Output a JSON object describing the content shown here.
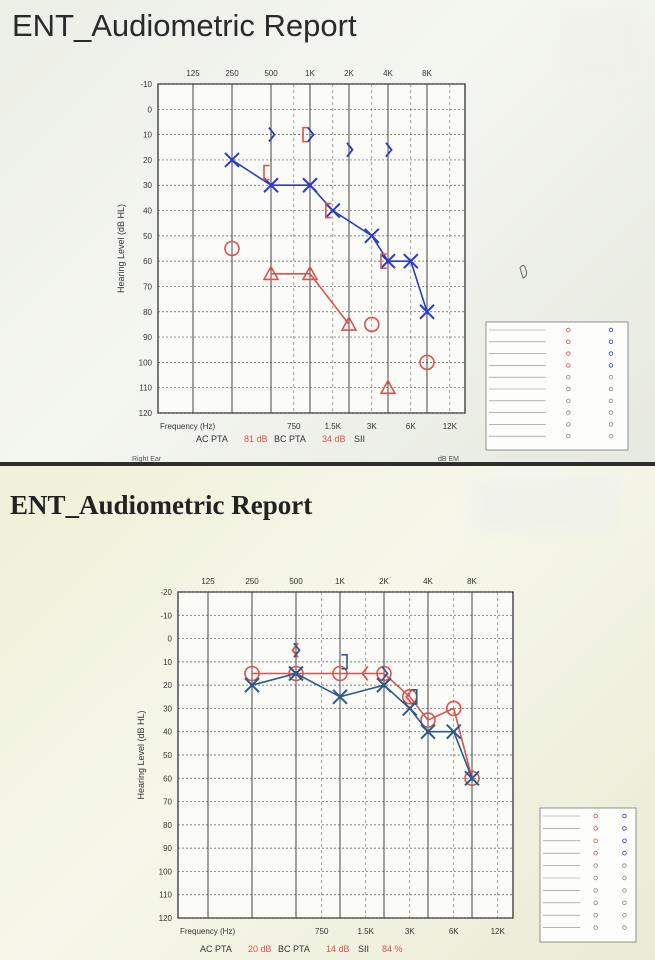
{
  "reports": [
    {
      "title": "ENT_Audiometric Report",
      "chart_data": {
        "type": "scatter",
        "xlabel": "Frequency (Hz)",
        "ylabel": "Hearing Level (dB HL)",
        "x_top_ticks": [
          "125",
          "250",
          "500",
          "1K",
          "2K",
          "4K",
          "8K"
        ],
        "x_bottom_ticks": [
          "750",
          "1.5K",
          "3K",
          "6K",
          "12K"
        ],
        "y_ticks": [
          -10,
          0,
          10,
          20,
          30,
          40,
          50,
          60,
          70,
          80,
          90,
          100,
          110,
          120
        ],
        "ylim": [
          -10,
          120
        ],
        "grid": true,
        "series": [
          {
            "symbol": "circle",
            "color": "#d9534f",
            "x": [
              "250"
            ],
            "values": [
              55
            ]
          },
          {
            "symbol": "triangle",
            "color": "#d9534f",
            "x": [
              "500",
              "1K",
              "2K"
            ],
            "values": [
              65,
              65,
              85
            ]
          },
          {
            "symbol": "circle",
            "color": "#d9534f",
            "x": [
              "3K"
            ],
            "values": [
              85
            ]
          },
          {
            "symbol": "triangle",
            "color": "#d9534f",
            "x": [
              "4K"
            ],
            "values": [
              110
            ]
          },
          {
            "symbol": "circle",
            "color": "#d9534f",
            "x": [
              "8K"
            ],
            "values": [
              100
            ]
          },
          {
            "symbol": "cross",
            "color": "#2a3cc8",
            "x": [
              "250",
              "500",
              "1K",
              "1.5K",
              "3K",
              "4K",
              "6K",
              "8K"
            ],
            "values": [
              20,
              30,
              30,
              40,
              50,
              60,
              60,
              80
            ]
          },
          {
            "symbol": "bracket-left",
            "color": "#d9534f",
            "x": [
              "500",
              "1K",
              "1.5K",
              "4K"
            ],
            "values": [
              25,
              10,
              40,
              60
            ]
          },
          {
            "symbol": "angle-right",
            "color": "#2a3cc8",
            "x": [
              "500",
              "1K",
              "2K",
              "4K"
            ],
            "values": [
              10,
              10,
              16,
              16
            ]
          }
        ],
        "footer": {
          "ac_label": "AC PTA",
          "ac_value": "81 dB",
          "bc_label": "BC PTA",
          "bc_value": "34 dB",
          "sii_label": "SII",
          "sii_value": ""
        },
        "ear_label": "Right Ear",
        "unit_label": "dB EM"
      }
    },
    {
      "title": "ENT_Audiometric Report",
      "chart_data": {
        "type": "scatter",
        "xlabel": "Frequency (Hz)",
        "ylabel": "Hearing Level (dB HL)",
        "x_top_ticks": [
          "125",
          "250",
          "500",
          "1K",
          "2K",
          "4K",
          "8K"
        ],
        "x_bottom_ticks": [
          "750",
          "1.5K",
          "3K",
          "6K",
          "12K"
        ],
        "y_ticks": [
          -20,
          -10,
          0,
          10,
          20,
          30,
          40,
          50,
          60,
          70,
          80,
          90,
          100,
          110,
          120
        ],
        "ylim": [
          -20,
          120
        ],
        "grid": true,
        "series": [
          {
            "symbol": "circle",
            "color": "#d9534f",
            "x": [
              "250",
              "500",
              "1K",
              "2K",
              "3K",
              "4K",
              "6K",
              "8K"
            ],
            "values": [
              15,
              15,
              15,
              15,
              25,
              35,
              30,
              60
            ]
          },
          {
            "symbol": "cross",
            "color": "#2e5a8a",
            "x": [
              "250",
              "500",
              "1K",
              "2K",
              "3K",
              "4K",
              "6K",
              "8K"
            ],
            "values": [
              20,
              15,
              25,
              20,
              30,
              40,
              40,
              60
            ]
          },
          {
            "symbol": "angle-left",
            "color": "#d9534f",
            "x": [
              "500"
            ],
            "values": [
              5
            ]
          },
          {
            "symbol": "angle-right",
            "color": "#2e5a8a",
            "x": [
              "500",
              "2K"
            ],
            "values": [
              5,
              15
            ]
          },
          {
            "symbol": "bracket-right",
            "color": "#2e5a8a",
            "x": [
              "1K",
              "3K"
            ],
            "values": [
              10,
              25
            ]
          },
          {
            "symbol": "angle-left",
            "color": "#d9534f",
            "x": [
              "1.5K",
              "3K"
            ],
            "values": [
              15,
              25
            ]
          }
        ],
        "footer": {
          "ac_label": "AC PTA",
          "ac_value": "20 dB",
          "bc_label": "BC PTA",
          "bc_value": "14 dB",
          "sii_label": "SII",
          "sii_value": "84 %"
        }
      }
    }
  ]
}
